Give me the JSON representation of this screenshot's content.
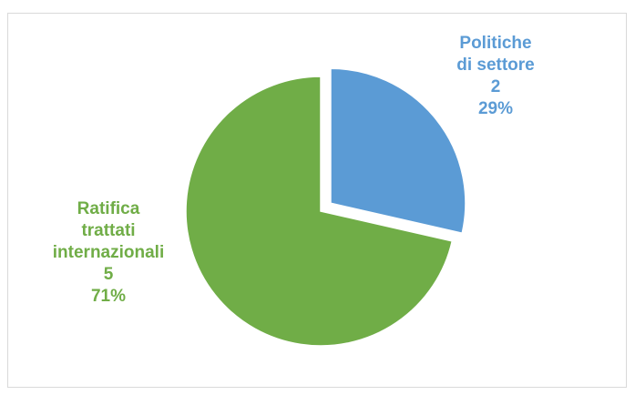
{
  "chart_data": {
    "type": "pie",
    "title": "",
    "slices": [
      {
        "category": "Politiche di settore",
        "category_lines": [
          "Politiche",
          "di settore"
        ],
        "value": 2,
        "value_label": "2",
        "percent_label": "29%",
        "color": "#5b9bd5",
        "exploded": true
      },
      {
        "category": "Ratifica trattati internazionali",
        "category_lines": [
          "Ratifica",
          "trattati",
          "internazionali"
        ],
        "value": 5,
        "value_label": "5",
        "percent_label": "71%",
        "color": "#70ad47",
        "exploded": false
      }
    ],
    "legend": "none",
    "start_angle": "12 o'clock, clockwise"
  }
}
